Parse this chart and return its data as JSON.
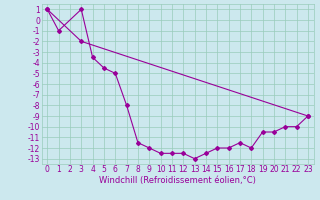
{
  "line1_x": [
    0,
    1,
    3,
    4,
    5,
    6,
    7,
    8,
    9,
    10,
    11,
    12,
    13,
    14,
    15,
    16,
    17,
    18,
    19,
    20,
    21,
    22,
    23
  ],
  "line1_y": [
    1,
    -1,
    1,
    -3.5,
    -4.5,
    -5.0,
    -8.0,
    -11.5,
    -12.0,
    -12.5,
    -12.5,
    -12.5,
    -13.0,
    -12.5,
    -12.0,
    -12.0,
    -11.5,
    -12.0,
    -10.5,
    -10.5,
    -10.0,
    -10.0,
    -9.0
  ],
  "line2_x": [
    0,
    3,
    23
  ],
  "line2_y": [
    1,
    -2.0,
    -9.0
  ],
  "color": "#990099",
  "background": "#cce8ee",
  "grid_color": "#99ccbb",
  "xlabel": "Windchill (Refroidissement éolien,°C)",
  "ylim": [
    -13.5,
    1.5
  ],
  "xlim": [
    -0.5,
    23.5
  ],
  "yticks": [
    1,
    0,
    -1,
    -2,
    -3,
    -4,
    -5,
    -6,
    -7,
    -8,
    -9,
    -10,
    -11,
    -12,
    -13
  ],
  "xticks": [
    0,
    1,
    2,
    3,
    4,
    5,
    6,
    7,
    8,
    9,
    10,
    11,
    12,
    13,
    14,
    15,
    16,
    17,
    18,
    19,
    20,
    21,
    22,
    23
  ],
  "marker": "D",
  "markersize": 2,
  "linewidth": 0.8,
  "xlabel_fontsize": 6,
  "tick_fontsize": 5.5
}
